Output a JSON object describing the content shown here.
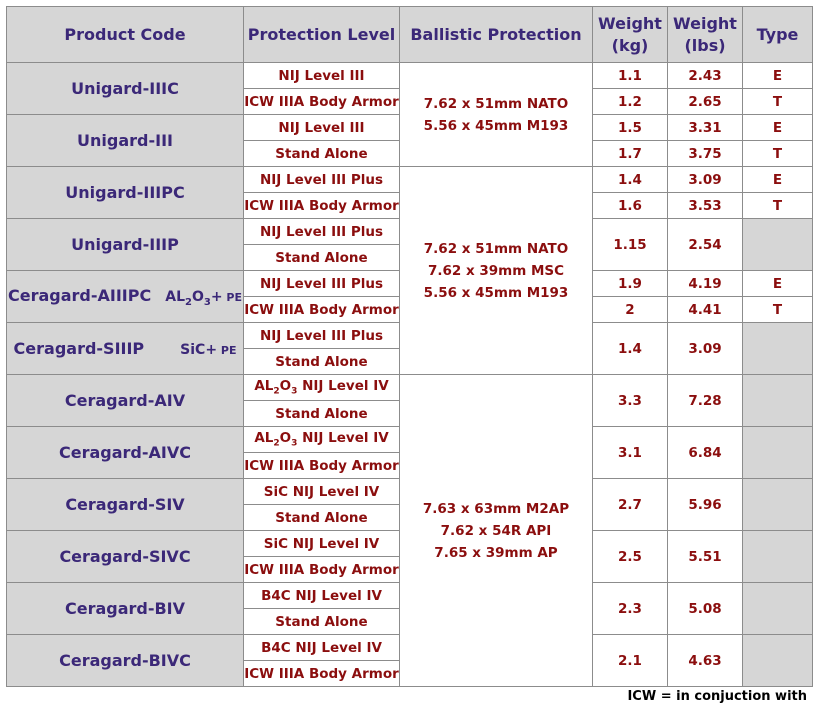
{
  "headers": {
    "code": "Product Code",
    "protection": "Protection Level",
    "ballistic": "Ballistic Protection",
    "weight_kg_1": "Weight",
    "weight_kg_2": "(kg)",
    "weight_lbs_1": "Weight",
    "weight_lbs_2": "(lbs)",
    "type": "Type"
  },
  "products": [
    {
      "code": "Unigard-IIIC",
      "rows": [
        {
          "level": "NIJ Level III",
          "kg": "1.1",
          "lbs": "2.43",
          "type": "E"
        },
        {
          "level": "ICW IIIA Body Armor",
          "kg": "1.2",
          "lbs": "2.65",
          "type": "T"
        }
      ]
    },
    {
      "code": "Unigard-III",
      "rows": [
        {
          "level": "NIJ Level III",
          "kg": "1.5",
          "lbs": "3.31",
          "type": "E"
        },
        {
          "level": "Stand Alone",
          "kg": "1.7",
          "lbs": "3.75",
          "type": "T"
        }
      ]
    },
    {
      "code": "Unigard-IIIPC",
      "rows": [
        {
          "level": "NIJ Level III Plus",
          "kg": "1.4",
          "lbs": "3.09",
          "type": "E"
        },
        {
          "level": "ICW IIIA Body Armor",
          "kg": "1.6",
          "lbs": "3.53",
          "type": "T"
        }
      ]
    },
    {
      "code": "Unigard-IIIP",
      "kg": "1.15",
      "lbs": "2.54",
      "rows": [
        {
          "level": "NIJ Level III Plus"
        },
        {
          "level": "Stand Alone"
        }
      ]
    },
    {
      "code": "Ceragard-AIIIPC",
      "material": {
        "pre": "AL",
        "sub": "2",
        "mid": "O",
        "sub2": "3",
        "post": "+",
        "tail": " PE"
      },
      "rows": [
        {
          "level": "NIJ Level III Plus",
          "kg": "1.9",
          "lbs": "4.19",
          "type": "E"
        },
        {
          "level": "ICW IIIA Body Armor",
          "kg": "2",
          "lbs": "4.41",
          "type": "T"
        }
      ]
    },
    {
      "code": "Ceragard-SIIIP",
      "material": {
        "pre": "SiC",
        "post": "+",
        "tail": " PE"
      },
      "kg": "1.4",
      "lbs": "3.09",
      "rows": [
        {
          "level": "NIJ Level III Plus"
        },
        {
          "level": "Stand Alone"
        }
      ]
    },
    {
      "code": "Ceragard-AIV",
      "kg": "3.3",
      "lbs": "7.28",
      "rows": [
        {
          "level_pre": "AL",
          "level_sub": "2",
          "level_mid": "O",
          "level_sub2": "3",
          "level": " NIJ Level IV"
        },
        {
          "level": "Stand Alone"
        }
      ]
    },
    {
      "code": "Ceragard-AIVC",
      "kg": "3.1",
      "lbs": "6.84",
      "rows": [
        {
          "level_pre": "AL",
          "level_sub": "2",
          "level_mid": "O",
          "level_sub2": "3",
          "level": " NIJ Level IV"
        },
        {
          "level": "ICW IIIA Body Armor"
        }
      ]
    },
    {
      "code": "Ceragard-SIV",
      "kg": "2.7",
      "lbs": "5.96",
      "rows": [
        {
          "level": "SiC NIJ Level IV"
        },
        {
          "level": "Stand Alone"
        }
      ]
    },
    {
      "code": "Ceragard-SIVC",
      "kg": "2.5",
      "lbs": "5.51",
      "rows": [
        {
          "level": "SiC NIJ Level IV"
        },
        {
          "level": "ICW IIIA Body Armor"
        }
      ]
    },
    {
      "code": "Ceragard-BIV",
      "kg": "2.3",
      "lbs": "5.08",
      "rows": [
        {
          "level": "B4C NIJ Level IV"
        },
        {
          "level": "Stand Alone"
        }
      ]
    },
    {
      "code": "Ceragard-BIVC",
      "kg": "2.1",
      "lbs": "4.63",
      "rows": [
        {
          "level": "B4C NIJ Level IV"
        },
        {
          "level": "ICW IIIA Body Armor"
        }
      ]
    }
  ],
  "ballistic_groups": [
    {
      "lines": [
        "7.62 x 51mm NATO",
        "5.56 x 45mm M193"
      ]
    },
    {
      "lines": [
        "7.62 x 51mm NATO",
        "7.62 x 39mm MSC",
        "5.56 x 45mm M193"
      ]
    },
    {
      "lines": [
        "7.63 x 63mm M2AP",
        "7.62 x 54R API",
        "7.65 x 39mm AP"
      ]
    }
  ],
  "footnote": "ICW = in conjuction with"
}
